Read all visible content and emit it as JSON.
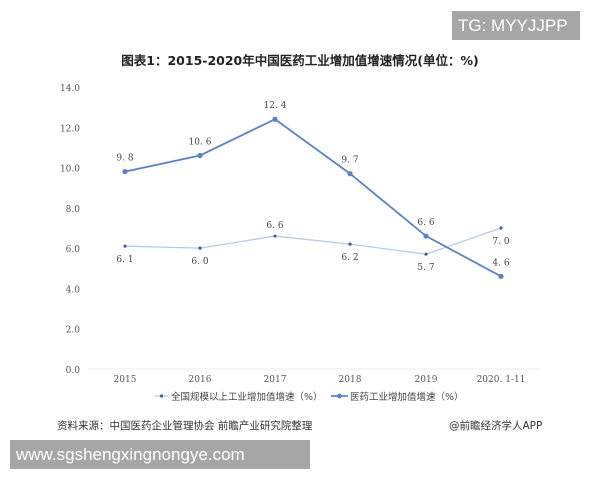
{
  "watermark_top": "TG: MYYJJPP",
  "watermark_bottom": "www.sgshengxingnongye.com",
  "source_text": "资料来源：中国医药企业管理协会 前瞻产业研究院整理",
  "credit_text": "@前瞻经济学人APP",
  "colors": {
    "pharma_line": "#5b83c4",
    "industry_line": "#b8cbe6",
    "axis_text": "#555555"
  },
  "chart_data": {
    "type": "line",
    "title": "图表1：2015-2020年中国医药工业增加值增速情况(单位：%)",
    "xlabel": "",
    "ylabel": "",
    "ylim": [
      0,
      14
    ],
    "yticks": [
      "0.0",
      "2.0",
      "4.0",
      "6.0",
      "8.0",
      "10.0",
      "12.0",
      "14.0"
    ],
    "categories": [
      "2015",
      "2016",
      "2017",
      "2018",
      "2019",
      "2020.1-11"
    ],
    "grid": false,
    "legend_position": "bottom",
    "series": [
      {
        "name": "全国规模以上工业增加值增速（%）",
        "values": [
          6.1,
          6.0,
          6.6,
          6.2,
          5.7,
          7.0
        ],
        "labels": [
          "6.1",
          "6.0",
          "6.6",
          "6.2",
          "5.7",
          "7.0"
        ]
      },
      {
        "name": "医药工业增加值增速（%）",
        "values": [
          9.8,
          10.6,
          12.4,
          9.7,
          6.6,
          4.6
        ],
        "labels": [
          "9.8",
          "10.6",
          "12.4",
          "9.7",
          "6.6",
          "4.6"
        ]
      }
    ]
  }
}
